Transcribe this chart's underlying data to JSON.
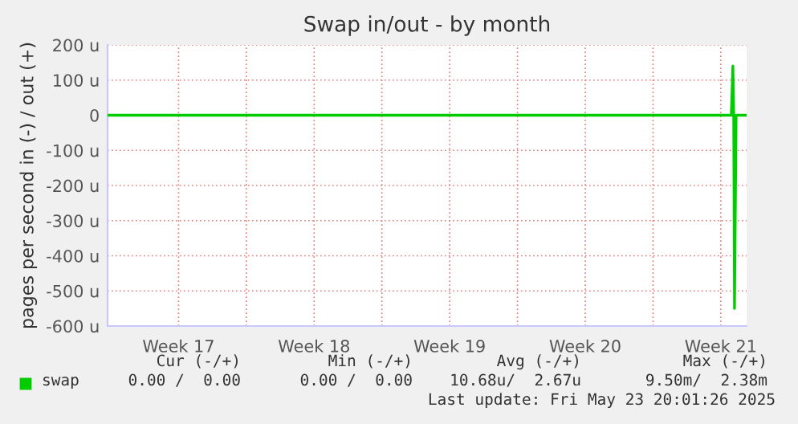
{
  "chart_data": {
    "type": "line",
    "title": "Swap in/out - by month",
    "ylabel": "pages per second in (-) / out (+)",
    "x": [
      "2025-04-20T20:00",
      "2025-05-23T01:00",
      "2025-05-23T03:00",
      "2025-05-23T04:00",
      "2025-05-23T05:00",
      "2025-05-23T07:00",
      "2025-05-23T20:00"
    ],
    "series": [
      {
        "name": "swap",
        "color": "#00cc00",
        "values": [
          0,
          0,
          140,
          0,
          -550,
          0,
          0
        ]
      }
    ],
    "xlim": [
      "2025-04-20T20:00",
      "2025-05-23T20:00"
    ],
    "xticks": [
      {
        "value": "2025-04-24T12:00",
        "label": "Week 17"
      },
      {
        "value": "2025-04-28",
        "label": null
      },
      {
        "value": "2025-05-01T12:00",
        "label": "Week 18"
      },
      {
        "value": "2025-05-05",
        "label": null
      },
      {
        "value": "2025-05-08T12:00",
        "label": "Week 19"
      },
      {
        "value": "2025-05-12",
        "label": null
      },
      {
        "value": "2025-05-15T12:00",
        "label": "Week 20"
      },
      {
        "value": "2025-05-19",
        "label": null
      },
      {
        "value": "2025-05-22T12:00",
        "label": "Week 21"
      }
    ],
    "ylim": [
      -600,
      200
    ],
    "yticks": [
      {
        "value": -600,
        "label": "-600 u"
      },
      {
        "value": -500,
        "label": "-500 u"
      },
      {
        "value": -400,
        "label": "-400 u"
      },
      {
        "value": -300,
        "label": "-300 u"
      },
      {
        "value": -200,
        "label": "-200 u"
      },
      {
        "value": -100,
        "label": "-100 u"
      },
      0,
      {
        "value": 100,
        "label": "100 u"
      },
      {
        "value": 200,
        "label": "200 u"
      }
    ],
    "grid": true,
    "legend": "bottom left",
    "ref_lines": [
      {
        "axis": "y",
        "value": 0,
        "color": "#000000"
      }
    ],
    "annotations": [
      "Cur (-/+)",
      "Min (-/+)",
      "Avg (-/+)",
      "Max (-/+)",
      "0.00 /  0.00",
      "0.00 /  0.00",
      "10.68u/  2.67u",
      "9.50m/  2.38m",
      "Last update: Fri May 23 20:01:26 2025"
    ]
  }
}
